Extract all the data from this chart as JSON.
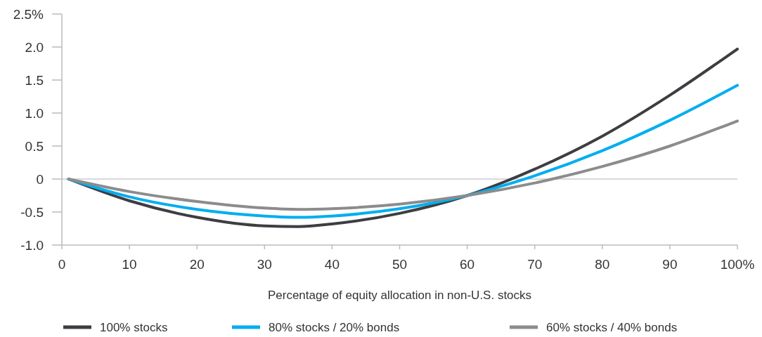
{
  "chart_data": {
    "type": "line",
    "xlabel": "Percentage of equity allocation in non-U.S. stocks",
    "x": [
      1,
      10,
      20,
      30,
      35,
      40,
      50,
      60,
      70,
      80,
      90,
      100
    ],
    "series": [
      {
        "name": "100% stocks",
        "color": "#3d3d42",
        "values": [
          0,
          -0.33,
          -0.58,
          -0.71,
          -0.72,
          -0.68,
          -0.52,
          -0.25,
          0.15,
          0.65,
          1.27,
          1.97
        ]
      },
      {
        "name": "80% stocks / 20% bonds",
        "color": "#00aeef",
        "values": [
          0,
          -0.27,
          -0.46,
          -0.56,
          -0.58,
          -0.56,
          -0.45,
          -0.25,
          0.05,
          0.43,
          0.89,
          1.42
        ]
      },
      {
        "name": "60% stocks / 40% bonds",
        "color": "#8c8c8c",
        "values": [
          0,
          -0.19,
          -0.34,
          -0.44,
          -0.46,
          -0.45,
          -0.38,
          -0.25,
          -0.06,
          0.19,
          0.5,
          0.88
        ]
      }
    ],
    "xlim": [
      0,
      100
    ],
    "xticks": [
      0,
      10,
      20,
      30,
      40,
      50,
      60,
      70,
      80,
      90,
      {
        "value": 100,
        "label": "100%"
      }
    ],
    "ylim": [
      -1,
      2.5
    ],
    "yticks": [
      {
        "value": -1,
        "label": "-1.0"
      },
      -0.5,
      0,
      0.5,
      {
        "value": 1,
        "label": "1.0"
      },
      1.5,
      {
        "value": 2,
        "label": "2.0"
      },
      {
        "value": 2.5,
        "label": "2.5%"
      }
    ],
    "ref_lines": [
      {
        "axis": "y",
        "value": 0,
        "color": "#cccccc"
      }
    ],
    "grid": false,
    "legend": "bottom",
    "marker": "none",
    "line_style": "solid"
  }
}
